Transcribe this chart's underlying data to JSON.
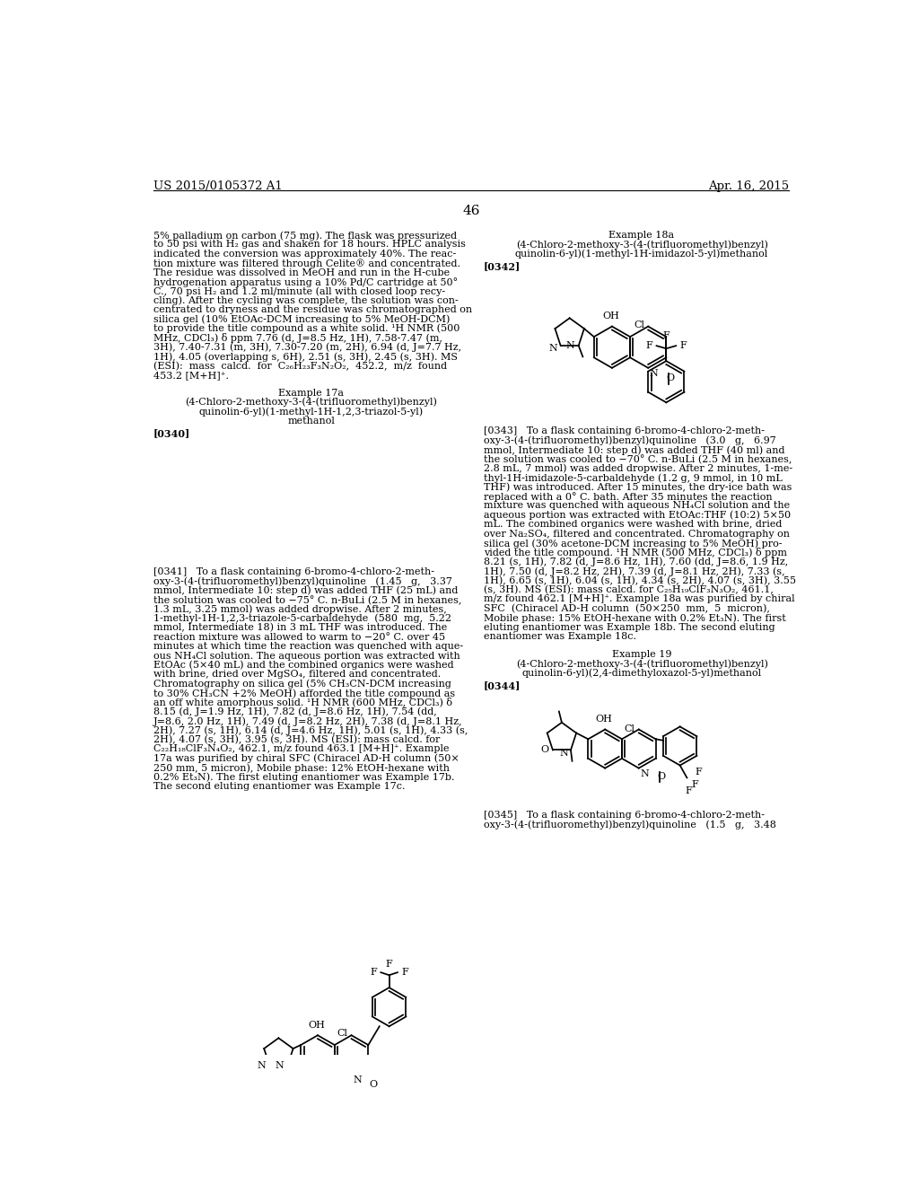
{
  "background_color": "#ffffff",
  "page_header_left": "US 2015/0105372 A1",
  "page_header_right": "Apr. 16, 2015",
  "page_number": "46",
  "left_column_text": [
    "5% palladium on carbon (75 mg). The flask was pressurized",
    "to 50 psi with H₂ gas and shaken for 18 hours. HPLC analysis",
    "indicated the conversion was approximately 40%. The reac-",
    "tion mixture was filtered through Celite® and concentrated.",
    "The residue was dissolved in MeOH and run in the H-cube",
    "hydrogenation apparatus using a 10% Pd/C cartridge at 50°",
    "C., 70 psi H₂ and 1.2 ml/minute (all with closed loop recy-",
    "cling). After the cycling was complete, the solution was con-",
    "centrated to dryness and the residue was chromatographed on",
    "silica gel (10% EtOAc-DCM increasing to 5% MeOH-DCM)",
    "to provide the title compound as a white solid. ¹H NMR (500",
    "MHz, CDCl₃) δ ppm 7.76 (d, J=8.5 Hz, 1H), 7.58-7.47 (m,",
    "3H), 7.40-7.31 (m, 3H), 7.30-7.20 (m, 2H), 6.94 (d, J=7.7 Hz,",
    "1H), 4.05 (overlapping s, 6H), 2.51 (s, 3H), 2.45 (s, 3H). MS",
    "(ESI):  mass  calcd.  for  C₂₆H₂₃F₃N₂O₂,  452.2,  m/z  found",
    "453.2 [M+H]⁺."
  ],
  "example_17a_title": "Example 17a",
  "example_17a_name_line1": "(4-Chloro-2-methoxy-3-(4-(trifluoromethyl)benzyl)",
  "example_17a_name_line2": "quinolin-6-yl)(1-methyl-1H-1,2,3-triazol-5-yl)",
  "example_17a_name_line3": "methanol",
  "tag_0340": "[0340]",
  "left_body_341_lines": [
    "[0341]   To a flask containing 6-bromo-4-chloro-2-meth-",
    "oxy-3-(4-(trifluoromethyl)benzyl)quinoline   (1.45   g,   3.37",
    "mmol, Intermediate 10: step d) was added THF (25 mL) and",
    "the solution was cooled to −75° C. n-BuLi (2.5 M in hexanes,",
    "1.3 mL, 3.25 mmol) was added dropwise. After 2 minutes,",
    "1-methyl-1H-1,2,3-triazole-5-carbaldehyde  (580  mg,  5.22",
    "mmol, Intermediate 18) in 3 mL THF was introduced. The",
    "reaction mixture was allowed to warm to −20° C. over 45",
    "minutes at which time the reaction was quenched with aque-",
    "ous NH₄Cl solution. The aqueous portion was extracted with",
    "EtOAc (5×40 mL) and the combined organics were washed",
    "with brine, dried over MgSO₄, filtered and concentrated.",
    "Chromatography on silica gel (5% CH₃CN-DCM increasing",
    "to 30% CH₃CN +2% MeOH) afforded the title compound as",
    "an off white amorphous solid. ¹H NMR (600 MHz, CDCl₃) δ",
    "8.15 (d, J=1.9 Hz, 1H), 7.82 (d, J=8.6 Hz, 1H), 7.54 (dd,",
    "J=8.6, 2.0 Hz, 1H), 7.49 (d, J=8.2 Hz, 2H), 7.38 (d, J=8.1 Hz,",
    "2H), 7.27 (s, 1H), 6.14 (d, J=4.6 Hz, 1H), 5.01 (s, 1H), 4.33 (s,",
    "2H), 4.07 (s, 3H), 3.95 (s, 3H). MS (ESI): mass calcd. for",
    "C₂₂H₁₈ClF₃N₄O₂, 462.1, m/z found 463.1 [M+H]⁺. Example",
    "17a was purified by chiral SFC (Chiracel AD-H column (50×",
    "250 mm, 5 micron), Mobile phase: 12% EtOH-hexane with",
    "0.2% Et₃N). The first eluting enantiomer was Example 17b.",
    "The second eluting enantiomer was Example 17c."
  ],
  "example_18a_title": "Example 18a",
  "example_18a_name_line1": "(4-Chloro-2-methoxy-3-(4-(trifluoromethyl)benzyl)",
  "example_18a_name_line2": "quinolin-6-yl)(1-methyl-1H-imidazol-5-yl)methanol",
  "tag_0342": "[0342]",
  "right_body_343_lines": [
    "[0343]   To a flask containing 6-bromo-4-chloro-2-meth-",
    "oxy-3-(4-(trifluoromethyl)benzyl)quinoline   (3.0   g,   6.97",
    "mmol, Intermediate 10: step d) was added THF (40 ml) and",
    "the solution was cooled to −70° C. n-BuLi (2.5 M in hexanes,",
    "2.8 mL, 7 mmol) was added dropwise. After 2 minutes, 1-me-",
    "thyl-1H-imidazole-5-carbaldehyde (1.2 g, 9 mmol, in 10 mL",
    "THF) was introduced. After 15 minutes, the dry-ice bath was",
    "replaced with a 0° C. bath. After 35 minutes the reaction",
    "mixture was quenched with aqueous NH₄Cl solution and the",
    "aqueous portion was extracted with EtOAc:THF (10:2) 5×50",
    "mL. The combined organics were washed with brine, dried",
    "over Na₂SO₄, filtered and concentrated. Chromatography on",
    "silica gel (30% acetone-DCM increasing to 5% MeOH) pro-",
    "vided the title compound. ¹H NMR (500 MHz, CDCl₃) δ ppm",
    "8.21 (s, 1H), 7.82 (d, J=8.6 Hz, 1H), 7.60 (dd, J=8.6, 1.9 Hz,",
    "1H), 7.50 (d, J=8.2 Hz, 2H), 7.39 (d, J=8.1 Hz, 2H), 7.33 (s,",
    "1H), 6.65 (s, 1H), 6.04 (s, 1H), 4.34 (s, 2H), 4.07 (s, 3H), 3.55",
    "(s, 3H). MS (ESI): mass calcd. for C₂₅H₁₉ClF₃N₃O₂, 461.1,",
    "m/z found 462.1 [M+H]⁺. Example 18a was purified by chiral",
    "SFC  (Chiracel AD-H column  (50×250  mm,  5  micron),",
    "Mobile phase: 15% EtOH-hexane with 0.2% Et₃N). The first",
    "eluting enantiomer was Example 18b. The second eluting",
    "enantiomer was Example 18c."
  ],
  "example_19_title": "Example 19",
  "example_19_name_line1": "(4-Chloro-2-methoxy-3-(4-(trifluoromethyl)benzyl)",
  "example_19_name_line2": "quinolin-6-yl)(2,4-dimethyloxazol-5-yl)methanol",
  "tag_0344": "[0344]",
  "right_body_345_lines": [
    "[0345]   To a flask containing 6-bromo-4-chloro-2-meth-",
    "oxy-3-(4-(trifluoromethyl)benzyl)quinoline   (1.5   g,   3.48"
  ]
}
